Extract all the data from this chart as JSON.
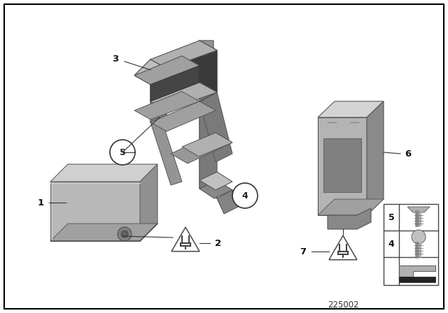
{
  "bg_color": "#ffffff",
  "diagram_id": "225002",
  "gray_main": "#a0a0a0",
  "gray_light": "#c8c8c8",
  "gray_dark": "#747474",
  "gray_darker": "#585858",
  "gray_mid": "#8c8c8c"
}
